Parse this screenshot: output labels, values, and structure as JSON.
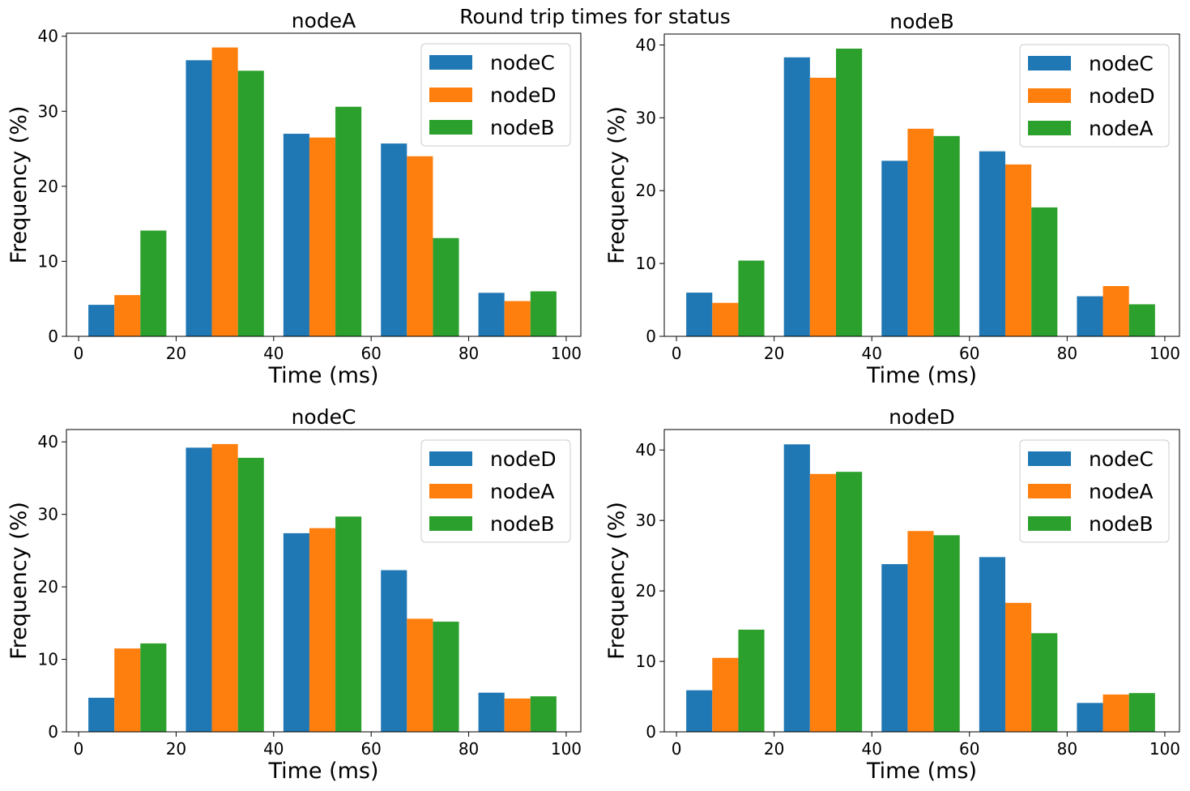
{
  "figure": {
    "suptitle": "Round trip times for status"
  },
  "colors": {
    "series1": "#1f77b4",
    "series2": "#ff7f0e",
    "series3": "#2ca02c"
  },
  "chart_data": [
    {
      "type": "bar",
      "title": "nodeA",
      "xlabel": "Time (ms)",
      "ylabel": "Frequency (%)",
      "bins": [
        [
          0,
          20
        ],
        [
          20,
          40
        ],
        [
          40,
          60
        ],
        [
          60,
          80
        ],
        [
          80,
          100
        ]
      ],
      "xlim": [
        -2.5,
        103
      ],
      "ylim": [
        0,
        40.4
      ],
      "xticks": [
        0,
        20,
        40,
        60,
        80,
        100
      ],
      "yticks": [
        0,
        10,
        20,
        30,
        40
      ],
      "legend_position": "top-right",
      "grid": false,
      "series": [
        {
          "name": "nodeC",
          "values": [
            4.2,
            36.8,
            27.0,
            25.7,
            5.8
          ]
        },
        {
          "name": "nodeD",
          "values": [
            5.5,
            38.5,
            26.5,
            24.0,
            4.7
          ]
        },
        {
          "name": "nodeB",
          "values": [
            14.1,
            35.4,
            30.6,
            13.1,
            6.0
          ]
        }
      ]
    },
    {
      "type": "bar",
      "title": "nodeB",
      "xlabel": "Time (ms)",
      "ylabel": "Frequency (%)",
      "bins": [
        [
          0,
          20
        ],
        [
          20,
          40
        ],
        [
          40,
          60
        ],
        [
          60,
          80
        ],
        [
          80,
          100
        ]
      ],
      "xlim": [
        -2.5,
        103
      ],
      "ylim": [
        0,
        41.5
      ],
      "xticks": [
        0,
        20,
        40,
        60,
        80,
        100
      ],
      "yticks": [
        0,
        10,
        20,
        30,
        40
      ],
      "legend_position": "top-right",
      "grid": false,
      "series": [
        {
          "name": "nodeC",
          "values": [
            6.0,
            38.3,
            24.1,
            25.4,
            5.5
          ]
        },
        {
          "name": "nodeD",
          "values": [
            4.6,
            35.5,
            28.5,
            23.6,
            6.9
          ]
        },
        {
          "name": "nodeA",
          "values": [
            10.4,
            39.5,
            27.5,
            17.7,
            4.4
          ]
        }
      ]
    },
    {
      "type": "bar",
      "title": "nodeC",
      "xlabel": "Time (ms)",
      "ylabel": "Frequency (%)",
      "bins": [
        [
          0,
          20
        ],
        [
          20,
          40
        ],
        [
          40,
          60
        ],
        [
          60,
          80
        ],
        [
          80,
          100
        ]
      ],
      "xlim": [
        -2.5,
        103
      ],
      "ylim": [
        0,
        41.7
      ],
      "xticks": [
        0,
        20,
        40,
        60,
        80,
        100
      ],
      "yticks": [
        0,
        10,
        20,
        30,
        40
      ],
      "legend_position": "top-right",
      "grid": false,
      "series": [
        {
          "name": "nodeD",
          "values": [
            4.7,
            39.2,
            27.4,
            22.3,
            5.4
          ]
        },
        {
          "name": "nodeA",
          "values": [
            11.5,
            39.7,
            28.1,
            15.6,
            4.6
          ]
        },
        {
          "name": "nodeB",
          "values": [
            12.2,
            37.8,
            29.7,
            15.2,
            4.9
          ]
        }
      ]
    },
    {
      "type": "bar",
      "title": "nodeD",
      "xlabel": "Time (ms)",
      "ylabel": "Frequency (%)",
      "bins": [
        [
          0,
          20
        ],
        [
          20,
          40
        ],
        [
          40,
          60
        ],
        [
          60,
          80
        ],
        [
          80,
          100
        ]
      ],
      "xlim": [
        -2.5,
        103
      ],
      "ylim": [
        0,
        42.9
      ],
      "xticks": [
        0,
        20,
        40,
        60,
        80,
        100
      ],
      "yticks": [
        0,
        10,
        20,
        30,
        40
      ],
      "legend_position": "top-right",
      "grid": false,
      "series": [
        {
          "name": "nodeC",
          "values": [
            5.9,
            40.8,
            23.8,
            24.8,
            4.1
          ]
        },
        {
          "name": "nodeA",
          "values": [
            10.5,
            36.6,
            28.5,
            18.3,
            5.3
          ]
        },
        {
          "name": "nodeB",
          "values": [
            14.5,
            36.9,
            27.9,
            14.0,
            5.5
          ]
        }
      ]
    }
  ]
}
